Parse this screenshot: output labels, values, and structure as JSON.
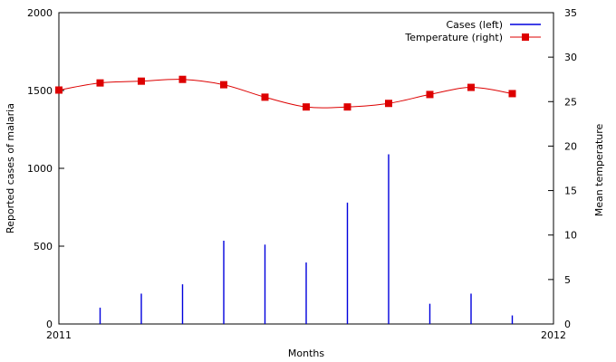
{
  "chart_data": {
    "type": "bar+line",
    "title": "",
    "xlabel": "Months",
    "ylabel_left": "Reported cases of malaria",
    "ylabel_right": "Mean temperature",
    "x_tick_labels": [
      "2011",
      "2012"
    ],
    "x_range_months": [
      0,
      12
    ],
    "ylim_left": [
      0,
      2000
    ],
    "ylim_right": [
      0,
      35
    ],
    "yticks_left": [
      0,
      500,
      1000,
      1500,
      2000
    ],
    "yticks_right": [
      0,
      5,
      10,
      15,
      20,
      25,
      30,
      35
    ],
    "legend_position": "top-right",
    "grid": false,
    "series": [
      {
        "name": "Cases  (left)",
        "kind": "impulse",
        "axis": "left",
        "color": "#0000dd",
        "x": [
          1,
          2,
          3,
          4,
          5,
          6,
          7,
          8,
          9,
          10,
          11
        ],
        "values": [
          105,
          195,
          255,
          535,
          510,
          395,
          780,
          1090,
          130,
          195,
          55
        ]
      },
      {
        "name": "Temperature  (right)",
        "kind": "line",
        "axis": "right",
        "color": "#dd0000",
        "x": [
          0,
          1,
          2,
          3,
          4,
          5,
          6,
          7,
          8,
          9,
          10,
          11
        ],
        "values": [
          26.3,
          27.1,
          27.3,
          27.5,
          26.9,
          25.5,
          24.4,
          24.4,
          24.8,
          25.8,
          26.6,
          25.9
        ]
      }
    ]
  }
}
